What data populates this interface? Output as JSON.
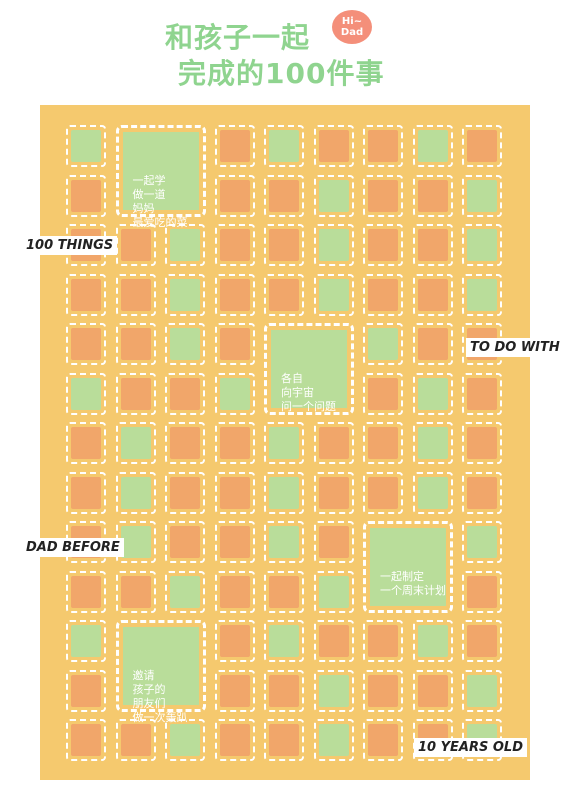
{
  "title": {
    "line1": "和孩子一起",
    "line2": "完成的100件事",
    "badge": "Hi~\nDad"
  },
  "labels": {
    "l1": "100 THINGS",
    "l2": "TO DO WITH",
    "l3": "DAD BEFORE",
    "l4": "10 YEARS OLD"
  },
  "featured": {
    "cook": "一起学\n做一道\n妈妈\n最爱吃的菜",
    "space": "各自\n向宇宙\n问一个问题",
    "weekend": "一起制定\n一个周末计划",
    "party": "邀请\n孩子的\n朋友们\n做一次轰趴"
  },
  "colors": {
    "poster": "#f5c96e",
    "orange": "#f1a66a",
    "green": "#b9dd9a",
    "title": "#8fd48f",
    "badge": "#f48f7a"
  }
}
